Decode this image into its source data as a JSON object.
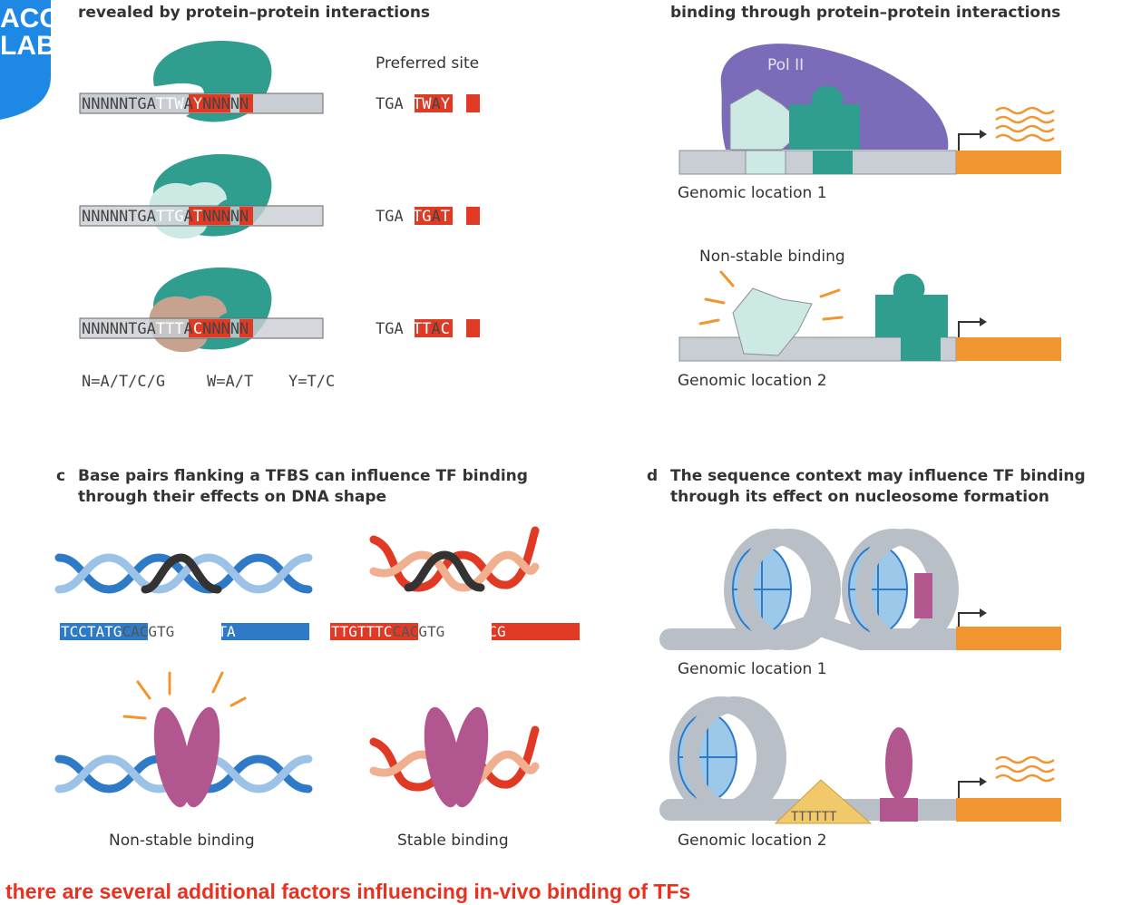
{
  "logo": {
    "line1": "ACO",
    "line2": "LAB",
    "color": "#1e88e5"
  },
  "panel_a": {
    "title": "revealed by protein–protein interactions",
    "preferred_site_label": "Preferred site",
    "rows": [
      {
        "seq": [
          "NNNNNTGA",
          "TTW",
          "A",
          "Y",
          "NNNNN"
        ],
        "site": [
          "TGA",
          "TTW",
          "A",
          "Y"
        ]
      },
      {
        "seq": [
          "NNNNNTGA",
          "TTG",
          "A",
          "T",
          "NNNNN"
        ],
        "site": [
          "TGA",
          "TTG",
          "A",
          "T"
        ]
      },
      {
        "seq": [
          "NNNNNTGA",
          "TTT",
          "A",
          "C",
          "NNNNN"
        ],
        "site": [
          "TGA",
          "TTT",
          "A",
          "C"
        ]
      }
    ],
    "legend": [
      "N=A/T/C/G",
      "W=A/T",
      "Y=T/C"
    ]
  },
  "panel_b": {
    "title": "binding through protein–protein interactions",
    "pol_label": "Pol II",
    "location1": "Genomic location 1",
    "non_stable": "Non-stable binding",
    "location2": "Genomic location 2"
  },
  "panel_c": {
    "letter": "c",
    "title_line1": "Base pairs flanking a TFBS can influence TF binding",
    "title_line2": "through their effects on DNA shape",
    "seq_left": [
      "TCCTATG",
      "CACGTG",
      "AGATGTA"
    ],
    "seq_right": [
      "TTGTTTC",
      "CACGTG",
      "ATCTGCG"
    ],
    "label_left": "Non-stable binding",
    "label_right": "Stable binding"
  },
  "panel_d": {
    "letter": "d",
    "title_line1": "The sequence context may influence TF binding",
    "title_line2": "through its effect on nucleosome formation",
    "location1": "Genomic location 1",
    "polyT": "TTTTTT",
    "location2": "Genomic location 2"
  },
  "caption": "there are several additional factors influencing in-vivo binding of TFs",
  "colors": {
    "teal": "#2f9e8f",
    "light_teal": "#cde9e3",
    "purple": "#7b6bb8",
    "orange": "#f0952f",
    "red": "#e03a25",
    "blue": "#2e7ac6",
    "pink": "#b2568f",
    "grey_dna": "#c9ced4"
  }
}
